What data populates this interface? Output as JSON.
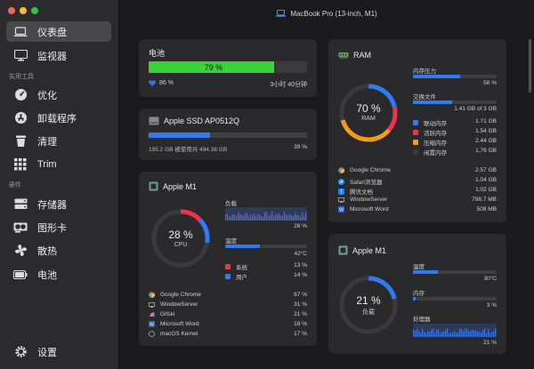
{
  "window": {
    "title": "MacBook Pro (13-inch, M1)"
  },
  "sidebar": {
    "items_top": [
      {
        "label": "仪表盘",
        "icon": "laptop-icon"
      },
      {
        "label": "监视器",
        "icon": "monitor-icon"
      }
    ],
    "section_tools": "实用工具",
    "items_tools": [
      {
        "label": "优化",
        "icon": "gauge-icon"
      },
      {
        "label": "卸载程序",
        "icon": "app-store-icon"
      },
      {
        "label": "清理",
        "icon": "trash-icon"
      },
      {
        "label": "Trim",
        "icon": "grid-icon"
      }
    ],
    "section_hw": "硬件",
    "items_hw": [
      {
        "label": "存储器",
        "icon": "storage-icon"
      },
      {
        "label": "图形卡",
        "icon": "gpu-icon"
      },
      {
        "label": "散热",
        "icon": "fan-icon"
      },
      {
        "label": "电池",
        "icon": "battery-icon"
      }
    ],
    "settings": "设置"
  },
  "battery": {
    "title": "电池",
    "percent_label": "79 %",
    "level": 0.79,
    "health": "86 %",
    "time_left": "3小时 40分钟",
    "color": "#3bd13b"
  },
  "ssd": {
    "title": "Apple SSD AP0512Q",
    "usage": "195.2 GB 被使用共 494.38 GB",
    "percent": "39 %",
    "level": 0.39
  },
  "cpu": {
    "title": "Apple M1",
    "gauge_value": "28 %",
    "gauge_label": "CPU",
    "load_label": "负载",
    "load_value": "28 %",
    "temp_label": "温度",
    "temp_value": "42°C",
    "system_label": "系统",
    "system_value": "13 %",
    "user_label": "用户",
    "user_value": "14 %",
    "processes": [
      {
        "name": "Google Chrome",
        "value": "67 %"
      },
      {
        "name": "WindowServer",
        "value": "31 %"
      },
      {
        "name": "Gifski",
        "value": "21 %"
      },
      {
        "name": "Microsoft Word",
        "value": "18 %"
      },
      {
        "name": "macOS Kernel",
        "value": "17 %"
      }
    ]
  },
  "ram": {
    "title": "RAM",
    "gauge_value": "70 %",
    "gauge_label": "RAM",
    "pressure_label": "内存压力",
    "pressure_value": "56 %",
    "swap_label": "交换文件",
    "swap_value": "1.41 GB of 3 GB",
    "legend": [
      {
        "label": "联动内存",
        "value": "1.71 GB",
        "color": "#2f7bf5"
      },
      {
        "label": "活跃内存",
        "value": "1.54 GB",
        "color": "#f0324f"
      },
      {
        "label": "压缩内存",
        "value": "2.44 GB",
        "color": "#f59a1a"
      },
      {
        "label": "闲置内存",
        "value": "1.76 GB",
        "color": "#3a3a3e"
      }
    ],
    "processes": [
      {
        "name": "Google Chrome",
        "value": "2.57 GB"
      },
      {
        "name": "Safari浏览器",
        "value": "1.04 GB"
      },
      {
        "name": "腾讯文档",
        "value": "1.02 GB"
      },
      {
        "name": "WindowServer",
        "value": "798.7 MB"
      },
      {
        "name": "Microsoft Word",
        "value": "508 MB"
      }
    ]
  },
  "gpu": {
    "title": "Apple M1",
    "gauge_value": "21 %",
    "gauge_label": "负载",
    "temp_label": "温度",
    "temp_value": "30°C",
    "mem_label": "内存",
    "mem_value": "3 %",
    "proc_label": "处理器",
    "proc_value": "21 %"
  }
}
